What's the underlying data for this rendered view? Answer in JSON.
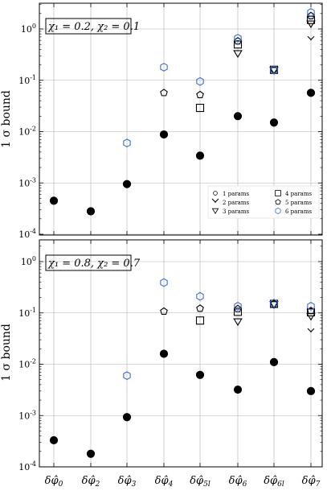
{
  "ylabel": "1 σ bound",
  "xticks": [
    {
      "base": "δφ̂",
      "sub": "0"
    },
    {
      "base": "δφ̂",
      "sub": "2"
    },
    {
      "base": "δφ̂",
      "sub": "3"
    },
    {
      "base": "δφ̂",
      "sub": "4"
    },
    {
      "base": "δφ̂",
      "sub": "5l"
    },
    {
      "base": "δφ̂",
      "sub": "6"
    },
    {
      "base": "δφ̂",
      "sub": "6l"
    },
    {
      "base": "δφ̂",
      "sub": "7"
    }
  ],
  "yticks": [
    {
      "base": "10",
      "exp": "0",
      "value": 1
    },
    {
      "base": "10",
      "exp": "-1",
      "value": 0.1
    },
    {
      "base": "10",
      "exp": "-2",
      "value": 0.01
    },
    {
      "base": "10",
      "exp": "-3",
      "value": 0.001
    },
    {
      "base": "10",
      "exp": "-4",
      "value": 0.0001
    }
  ],
  "legend": [
    {
      "label": "1 params",
      "marker": "circle",
      "color": "#000000"
    },
    {
      "label": "2 params",
      "marker": "tri_down",
      "color": "#000000"
    },
    {
      "label": "3 params",
      "marker": "triangle_down",
      "color": "#000000"
    },
    {
      "label": "4 params",
      "marker": "square",
      "color": "#000000"
    },
    {
      "label": "5 params",
      "marker": "pentagon",
      "color": "#000000"
    },
    {
      "label": "6 params",
      "marker": "hexagon",
      "color": "#3a6fd8"
    }
  ],
  "chart_data": [
    {
      "type": "scatter",
      "annotation": "χ₁ = 0.2, χ₂ = 0.1",
      "yscale": "log",
      "ylim": [
        0.0001,
        3
      ],
      "grid": true,
      "legend_position": "lower-right",
      "categories": [
        "δφ̂0",
        "δφ̂2",
        "δφ̂3",
        "δφ̂4",
        "δφ̂5l",
        "δφ̂6",
        "δφ̂6l",
        "δφ̂7"
      ],
      "series": [
        {
          "name": "1 params",
          "marker": "filled_circle",
          "values": [
            0.00045,
            0.00028,
            0.00095,
            0.0088,
            0.0034,
            0.02,
            0.015,
            0.057
          ]
        },
        {
          "name": "2 params",
          "marker": "tri_down",
          "values": [
            null,
            null,
            null,
            null,
            null,
            null,
            null,
            0.62
          ]
        },
        {
          "name": "3 params",
          "marker": "triangle_down",
          "values": [
            null,
            null,
            null,
            null,
            null,
            0.33,
            0.155,
            1.25
          ]
        },
        {
          "name": "4 params",
          "marker": "square",
          "values": [
            null,
            null,
            null,
            null,
            0.029,
            0.5,
            0.16,
            1.5
          ]
        },
        {
          "name": "5 params",
          "marker": "pentagon",
          "values": [
            null,
            null,
            null,
            0.057,
            0.052,
            0.58,
            0.16,
            1.8
          ]
        },
        {
          "name": "6 params",
          "marker": "hexagon",
          "values": [
            null,
            null,
            0.006,
            0.18,
            0.095,
            0.66,
            0.16,
            2.1
          ]
        }
      ]
    },
    {
      "type": "scatter",
      "annotation": "χ₁ = 0.8, χ₂ = 0.7",
      "yscale": "log",
      "ylim": [
        0.0001,
        3
      ],
      "grid": true,
      "categories": [
        "δφ̂0",
        "δφ̂2",
        "δφ̂3",
        "δφ̂4",
        "δφ̂5l",
        "δφ̂6",
        "δφ̂6l",
        "δφ̂7"
      ],
      "series": [
        {
          "name": "1 params",
          "marker": "filled_circle",
          "values": [
            0.00033,
            0.00018,
            0.00093,
            0.016,
            0.0062,
            0.0032,
            0.011,
            0.003
          ]
        },
        {
          "name": "2 params",
          "marker": "tri_down",
          "values": [
            null,
            null,
            null,
            null,
            null,
            null,
            null,
            0.043
          ]
        },
        {
          "name": "3 params",
          "marker": "triangle_down",
          "values": [
            null,
            null,
            null,
            null,
            null,
            0.067,
            0.145,
            0.085
          ]
        },
        {
          "name": "4 params",
          "marker": "square",
          "values": [
            null,
            null,
            null,
            null,
            0.071,
            0.105,
            0.15,
            0.103
          ]
        },
        {
          "name": "5 params",
          "marker": "pentagon",
          "values": [
            null,
            null,
            null,
            0.107,
            0.122,
            0.12,
            0.15,
            0.11
          ]
        },
        {
          "name": "6 params",
          "marker": "hexagon",
          "values": [
            null,
            null,
            0.006,
            0.39,
            0.21,
            0.135,
            0.155,
            0.135
          ]
        }
      ]
    }
  ]
}
